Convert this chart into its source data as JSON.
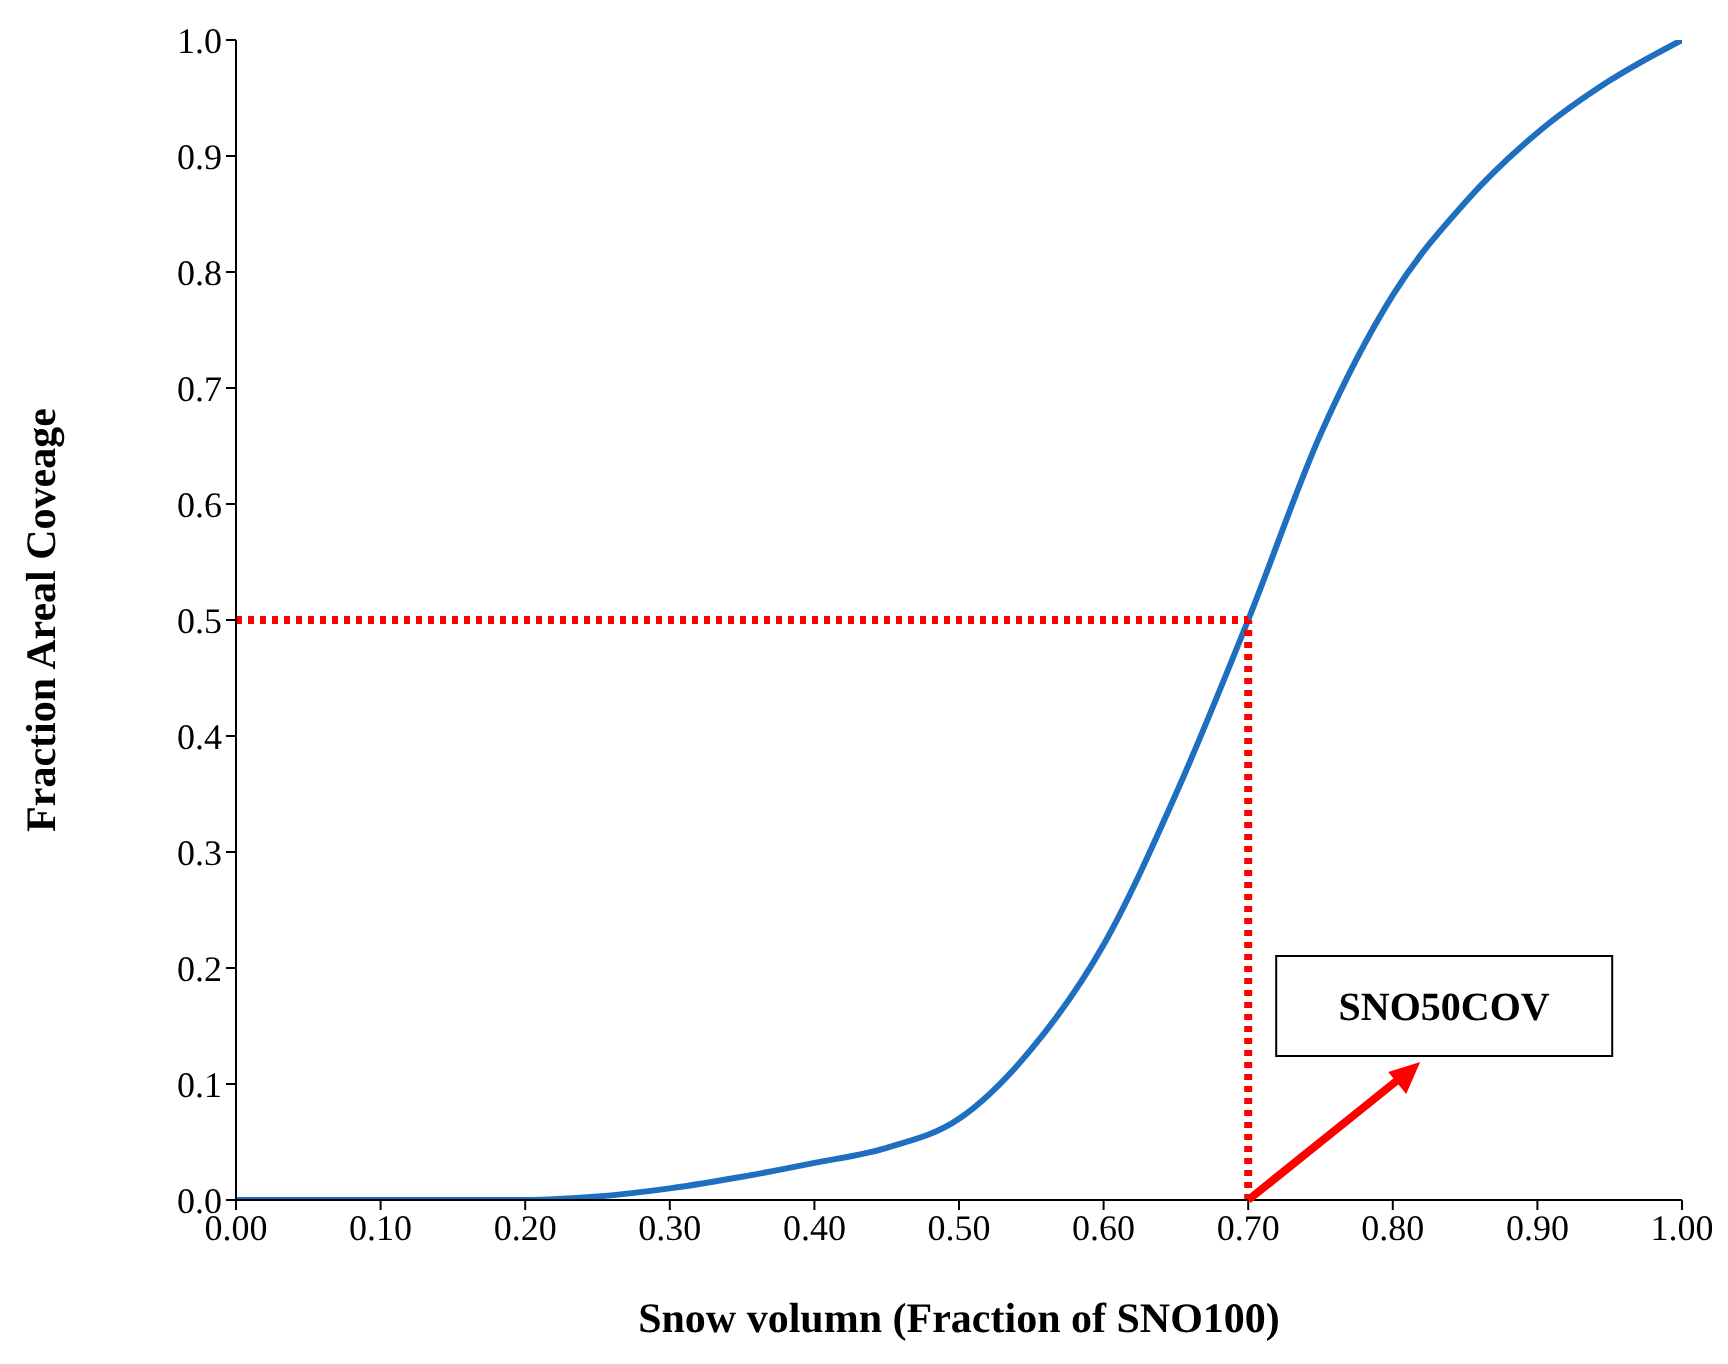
{
  "chart_data": {
    "type": "line",
    "xlabel": "Snow volumn (Fraction of SNO100)",
    "ylabel": "Fraction Areal Coveage",
    "x": [
      0,
      0.1,
      0.2,
      0.25,
      0.3,
      0.35,
      0.4,
      0.45,
      0.5,
      0.55,
      0.6,
      0.65,
      0.7,
      0.75,
      0.8,
      0.85,
      0.9,
      0.95,
      1.0
    ],
    "series": [
      {
        "color": "#1f6fc0",
        "values": [
          0,
          0,
          0,
          0.003,
          0.01,
          0.02,
          0.032,
          0.045,
          0.07,
          0.13,
          0.22,
          0.35,
          0.5,
          0.66,
          0.78,
          0.86,
          0.92,
          0.965,
          1.0
        ]
      }
    ],
    "xlim": [
      0,
      1
    ],
    "ylim": [
      0,
      1
    ],
    "xticks": [
      {
        "value": 0,
        "label": "0.00"
      },
      {
        "value": 0.1,
        "label": "0.10"
      },
      {
        "value": 0.2,
        "label": "0.20"
      },
      {
        "value": 0.3,
        "label": "0.30"
      },
      {
        "value": 0.4,
        "label": "0.40"
      },
      {
        "value": 0.5,
        "label": "0.50"
      },
      {
        "value": 0.6,
        "label": "0.60"
      },
      {
        "value": 0.7,
        "label": "0.70"
      },
      {
        "value": 0.8,
        "label": "0.80"
      },
      {
        "value": 0.9,
        "label": "0.90"
      },
      {
        "value": 1,
        "label": "1.00"
      }
    ],
    "yticks": [
      {
        "value": 0,
        "label": "0.0"
      },
      {
        "value": 0.1,
        "label": "0.1"
      },
      {
        "value": 0.2,
        "label": "0.2"
      },
      {
        "value": 0.3,
        "label": "0.3"
      },
      {
        "value": 0.4,
        "label": "0.4"
      },
      {
        "value": 0.5,
        "label": "0.5"
      },
      {
        "value": 0.6,
        "label": "0.6"
      },
      {
        "value": 0.7,
        "label": "0.7"
      },
      {
        "value": 0.8,
        "label": "0.8"
      },
      {
        "value": 0.9,
        "label": "0.9"
      },
      {
        "value": 1,
        "label": "1.0"
      }
    ],
    "ref_lines": [
      {
        "axis": "y",
        "value": 0.5,
        "color": "#ff0000",
        "line_style": "dotted"
      },
      {
        "axis": "x",
        "value": 0.7,
        "color": "#ff0000",
        "line_style": "dotted"
      }
    ],
    "annotations": [
      {
        "text": "SNO50COV",
        "x": 0.7,
        "y": 0
      }
    ],
    "grid": false,
    "legend": false,
    "marker": "none",
    "line_style": "solid"
  }
}
